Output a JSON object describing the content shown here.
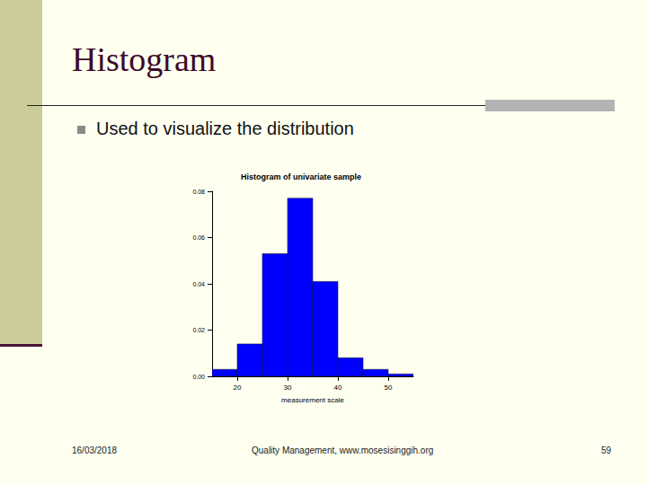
{
  "slide": {
    "title": "Histogram",
    "bullet": "Used to visualize the distribution",
    "footer_date": "16/03/2018",
    "footer_text": "Quality Management, www.mosesisinggih.org",
    "page": "59"
  },
  "chart_data": {
    "type": "histogram",
    "title": "Histogram of univariate sample",
    "xlabel": "measurement scale",
    "bins": [
      15,
      20,
      25,
      30,
      35,
      40,
      45,
      50,
      55
    ],
    "values": [
      0.003,
      0.014,
      0.053,
      0.077,
      0.041,
      0.008,
      0.003,
      0.001
    ],
    "color": "#0000ff",
    "xlim": [
      15,
      55
    ],
    "xticks": [
      20,
      30,
      40,
      50
    ],
    "ylim": [
      0,
      0.08
    ],
    "yticks": [
      {
        "value": 0,
        "label": "0.00"
      },
      {
        "value": 0.02,
        "label": "0.02"
      },
      {
        "value": 0.04,
        "label": "0.04"
      },
      {
        "value": 0.06,
        "label": "0.06"
      },
      {
        "value": 0.08,
        "label": "0.08"
      }
    ],
    "grid": false
  }
}
